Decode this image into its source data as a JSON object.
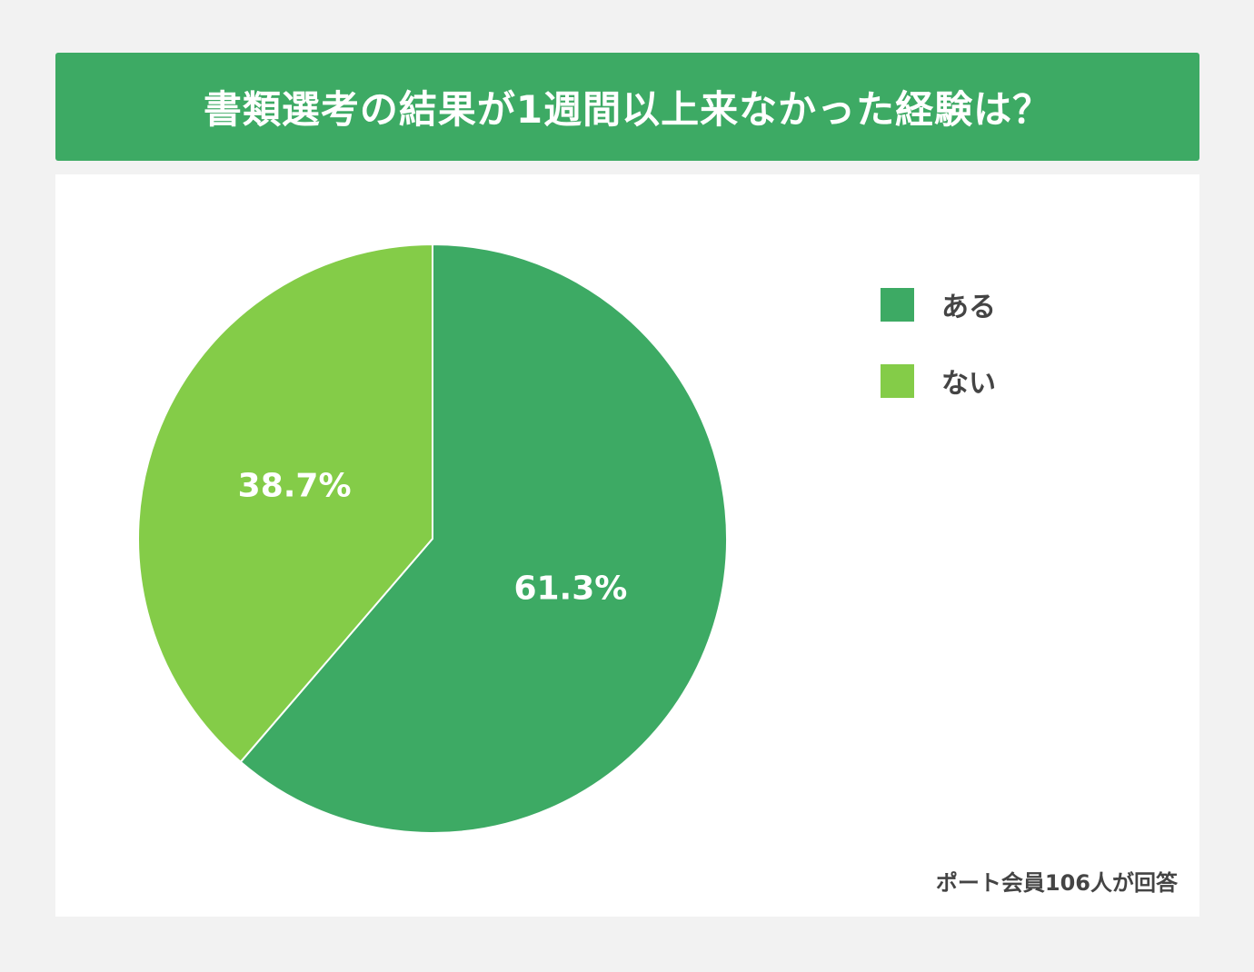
{
  "title": "書類選考の結果が1週間以上来なかった経験は？",
  "footnote": "ポート会員106人が回答",
  "colors": {
    "header_bg": "#3daa64",
    "slice_aru": "#3daa64",
    "slice_nai": "#84cc48"
  },
  "chart_data": {
    "type": "pie",
    "title": "書類選考の結果が1週間以上来なかった経験は？",
    "slices": [
      {
        "label": "ある",
        "value": 61.3,
        "display": "61.3%",
        "color": "#3daa64"
      },
      {
        "label": "ない",
        "value": 38.7,
        "display": "38.7%",
        "color": "#84cc48"
      }
    ],
    "legend_position": "top-right",
    "start_angle": "12 o'clock",
    "direction": "clockwise"
  }
}
